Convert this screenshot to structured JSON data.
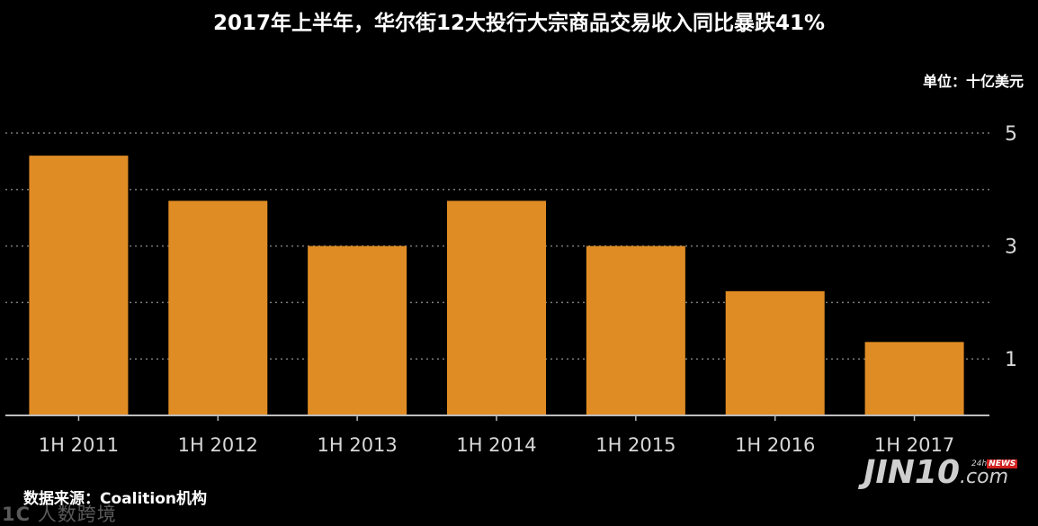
{
  "title": "2017年上半年，华尔街12大投行大宗商品交易收入同比暴跌41%",
  "unit_label": "单位：十亿美元",
  "source": "数据来源：Coalition机构",
  "watermark_left": {
    "mark": "1C",
    "text": "人数跨境"
  },
  "watermark_right": {
    "brand": "JIN10",
    "domain": ".com",
    "badge_prefix": "24h",
    "badge_news": "NEWS"
  },
  "colors": {
    "background": "#000000",
    "bar": "#e08c24",
    "grid": "#7a7a7a",
    "text": "#ffffff"
  },
  "chart_data": {
    "type": "bar",
    "title": "2017年上半年，华尔街12大投行大宗商品交易收入同比暴跌41%",
    "categories": [
      "1H 2011",
      "1H 2012",
      "1H 2013",
      "1H 2014",
      "1H 2015",
      "1H 2016",
      "1H 2017"
    ],
    "values": [
      4.6,
      3.8,
      3.0,
      3.8,
      3.0,
      2.2,
      1.3
    ],
    "ylim": [
      0,
      5
    ],
    "yticks": [
      1,
      3,
      5
    ],
    "grid": true,
    "grid_style": "dotted",
    "y_axis_side": "right"
  }
}
